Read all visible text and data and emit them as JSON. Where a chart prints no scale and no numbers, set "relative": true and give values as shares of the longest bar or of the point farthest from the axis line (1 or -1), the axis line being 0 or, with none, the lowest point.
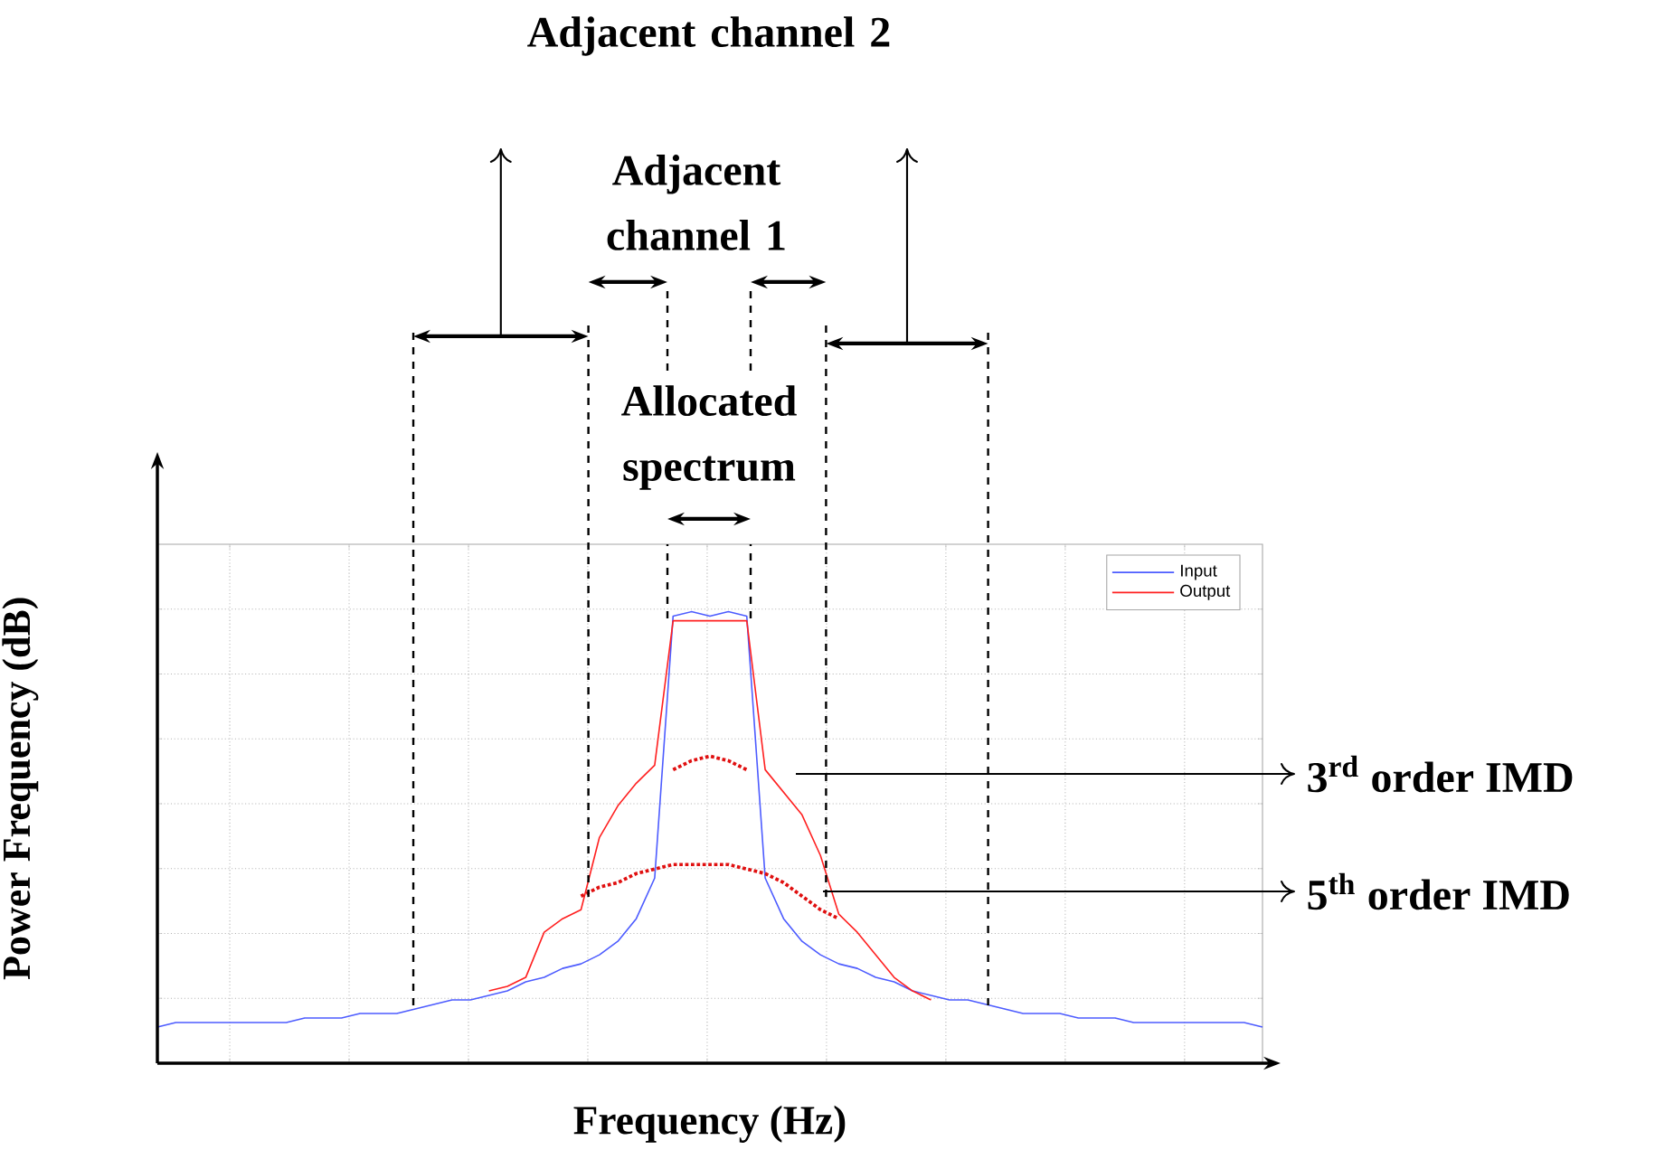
{
  "chart_data": {
    "type": "line",
    "relative": true,
    "xlabel": "Frequency (Hz)",
    "ylabel": "Power Frequency (dB)",
    "categories": [
      null,
      null,
      null,
      null,
      null,
      null,
      null,
      null,
      null,
      null,
      null,
      null,
      null,
      null,
      null,
      null,
      null,
      null,
      null,
      null,
      null,
      null,
      null,
      null,
      null,
      null,
      null,
      null,
      null,
      null,
      null,
      null,
      null,
      null,
      null,
      null,
      null,
      null,
      null,
      null,
      null,
      null,
      null,
      null,
      null,
      null,
      null,
      null,
      null,
      null,
      null,
      null,
      null,
      null,
      null,
      null,
      null,
      null,
      null,
      null,
      null
    ],
    "series": [
      {
        "name": "Input",
        "color": "#4d5cff",
        "values": [
          0.08,
          0.09,
          0.09,
          0.09,
          0.09,
          0.09,
          0.09,
          0.09,
          0.1,
          0.1,
          0.1,
          0.11,
          0.11,
          0.11,
          0.12,
          0.13,
          0.14,
          0.14,
          0.15,
          0.16,
          0.18,
          0.19,
          0.21,
          0.22,
          0.24,
          0.27,
          0.32,
          0.41,
          0.99,
          1.0,
          0.99,
          1,
          0.99,
          0.41,
          0.32,
          0.27,
          0.24,
          0.22,
          0.21,
          0.19,
          0.18,
          0.16,
          0.15,
          0.14,
          0.14,
          0.13,
          0.12,
          0.11,
          0.11,
          0.11,
          0.1,
          0.1,
          0.1,
          0.09,
          0.09,
          0.09,
          0.09,
          0.09,
          0.09,
          0.09,
          0.08
        ]
      },
      {
        "name": "Output",
        "color": "#ff2020",
        "values": [
          null,
          null,
          null,
          null,
          null,
          null,
          null,
          null,
          null,
          null,
          null,
          null,
          null,
          null,
          null,
          null,
          null,
          null,
          0.16,
          0.17,
          0.19,
          0.29,
          0.32,
          0.34,
          0.5,
          0.57,
          0.62,
          0.66,
          0.98,
          0.98,
          0.98,
          0.98,
          0.98,
          0.65,
          0.6,
          0.55,
          0.46,
          0.33,
          0.29,
          0.24,
          0.19,
          0.16,
          0.14,
          null,
          null,
          null,
          null,
          null,
          null,
          null,
          null,
          null,
          null,
          null,
          null,
          null,
          null,
          null,
          null,
          null,
          null
        ]
      },
      {
        "color": "#e01010",
        "line_style": "dotted",
        "values": [
          null,
          null,
          null,
          null,
          null,
          null,
          null,
          null,
          null,
          null,
          null,
          null,
          null,
          null,
          null,
          null,
          null,
          null,
          null,
          null,
          null,
          null,
          null,
          null,
          null,
          null,
          null,
          null,
          0.65,
          0.67,
          0.68,
          0.67,
          0.65,
          null,
          null,
          null,
          null,
          null,
          null,
          null,
          null,
          null,
          null,
          null,
          null,
          null,
          null,
          null,
          null,
          null,
          null,
          null,
          null,
          null,
          null,
          null,
          null,
          null,
          null,
          null,
          null
        ]
      },
      {
        "color": "#e01010",
        "line_style": "dotted",
        "values": [
          null,
          null,
          null,
          null,
          null,
          null,
          null,
          null,
          null,
          null,
          null,
          null,
          null,
          null,
          null,
          null,
          null,
          null,
          null,
          null,
          null,
          null,
          null,
          0.37,
          0.39,
          0.4,
          0.42,
          0.43,
          0.44,
          0.44,
          0.44,
          0.44,
          0.43,
          0.42,
          0.4,
          0.37,
          0.34,
          0.32,
          null,
          null,
          null,
          null,
          null,
          null,
          null,
          null,
          null,
          null,
          null,
          null,
          null,
          null,
          null,
          null,
          null,
          null,
          null,
          null,
          null,
          null,
          null
        ]
      }
    ],
    "annotations": [
      "Adjacent channel 2",
      "Adjacent channel 1",
      "Allocated spectrum",
      "3$^{rd}$ order IMD",
      "5$^{th}$ order IMD"
    ],
    "grid": true,
    "legend": "top right",
    "tick_labels": false,
    "marker": "none",
    "line_style": "solid"
  }
}
